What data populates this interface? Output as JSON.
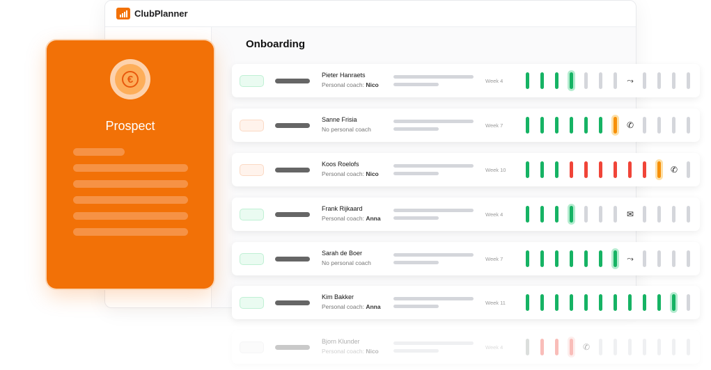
{
  "app": {
    "brand": "ClubPlanner",
    "page_title": "Onboarding"
  },
  "prospect_card": {
    "title": "Prospect",
    "icon": "euro-coin-icon"
  },
  "colors": {
    "accent": "#f27107",
    "green": "#16b364",
    "red": "#f04438",
    "orange": "#f79009",
    "grey": "#d4d6db"
  },
  "rows": [
    {
      "name": "Pieter Hanraets",
      "coach_prefix": "Personal coach: ",
      "coach": "Nico",
      "week": "Week 4",
      "pill": "green",
      "segments": [
        "g",
        "g",
        "g",
        "G",
        "x",
        "x",
        "x",
        "route",
        "x",
        "x",
        "x",
        "x"
      ]
    },
    {
      "name": "Sanne Frisia",
      "coach_prefix": "No personal coach",
      "coach": "",
      "week": "Week 7",
      "pill": "orange",
      "segments": [
        "g",
        "g",
        "g",
        "g",
        "g",
        "g",
        "O",
        "phone",
        "x",
        "x",
        "x",
        "x"
      ]
    },
    {
      "name": "Koos Roelofs",
      "coach_prefix": "Personal coach: ",
      "coach": "Nico",
      "week": "Week 10",
      "pill": "orange",
      "segments": [
        "g",
        "g",
        "g",
        "r",
        "r",
        "r",
        "r",
        "r",
        "r",
        "O",
        "phone",
        "x"
      ]
    },
    {
      "name": "Frank Rijkaard",
      "coach_prefix": "Personal coach: ",
      "coach": "Anna",
      "week": "Week 4",
      "pill": "green",
      "segments": [
        "g",
        "g",
        "g",
        "G",
        "x",
        "x",
        "x",
        "mail",
        "x",
        "x",
        "x",
        "x"
      ]
    },
    {
      "name": "Sarah de Boer",
      "coach_prefix": "No personal coach",
      "coach": "",
      "week": "Week 7",
      "pill": "green",
      "segments": [
        "g",
        "g",
        "g",
        "g",
        "g",
        "g",
        "G",
        "route",
        "x",
        "x",
        "x",
        "x"
      ]
    },
    {
      "name": "Kim Bakker",
      "coach_prefix": "Personal coach: ",
      "coach": "Anna",
      "week": "Week 11",
      "pill": "green",
      "segments": [
        "g",
        "g",
        "g",
        "g",
        "g",
        "g",
        "g",
        "g",
        "g",
        "g",
        "G",
        "x"
      ]
    },
    {
      "name": "Bjorn Klunder",
      "coach_prefix": "Personal coach: ",
      "coach": "Nico",
      "week": "Week 4",
      "pill": "grey",
      "segments": [
        "k",
        "r",
        "r",
        "R",
        "phone",
        "x",
        "x",
        "x",
        "x",
        "x",
        "x",
        "x"
      ]
    }
  ]
}
